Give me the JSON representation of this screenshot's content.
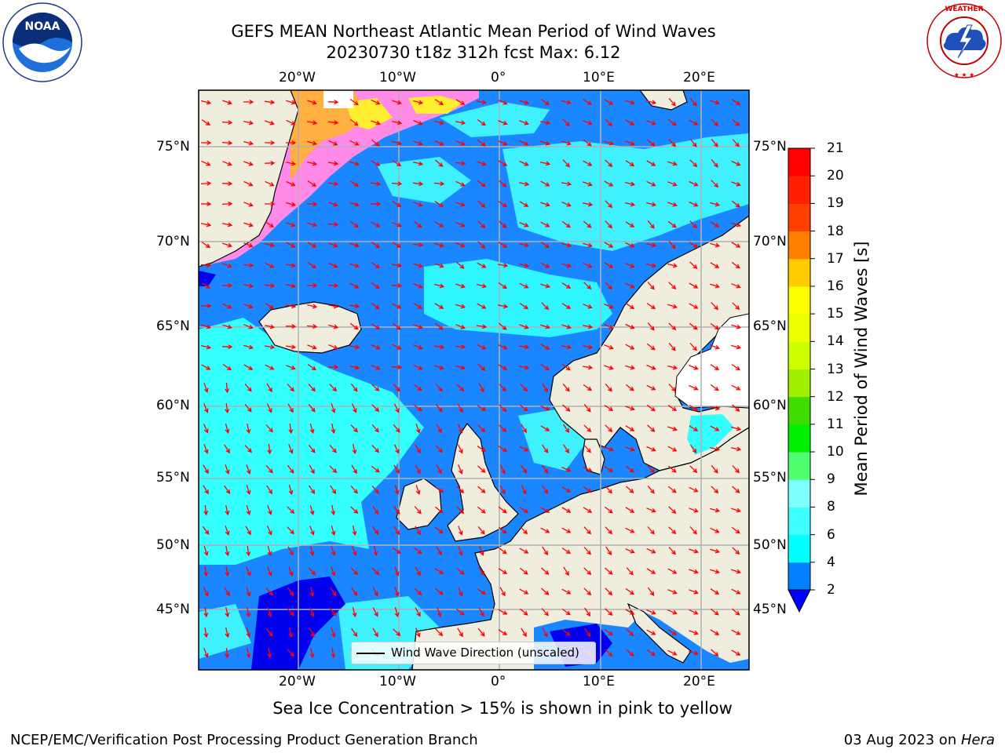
{
  "title": {
    "line1": "GEFS MEAN Northeast Atlantic Mean Period of Wind Waves",
    "line2": "20230730 t18z 312h fcst   Max: 6.12"
  },
  "logos": {
    "left": {
      "text": "NOAA",
      "ring_text": "NATIONAL OCEANIC AND ATMOSPHERIC ADMINISTRATION · U.S. DEPARTMENT OF COMMERCE",
      "icon": "noaa-logo"
    },
    "right": {
      "ring_text": "NATIONAL WEATHER SERVICE",
      "icon": "nws-logo"
    }
  },
  "map": {
    "longitude_labels": [
      "20°W",
      "10°W",
      "0°",
      "10°E",
      "20°E"
    ],
    "latitude_labels": [
      "75°N",
      "70°N",
      "65°N",
      "60°N",
      "55°N",
      "50°N",
      "45°N"
    ],
    "land_color": "#efedde",
    "coast_color": "#000000",
    "grid_color": "#b0b0b0",
    "arrow_color": "#ff0000"
  },
  "legend": {
    "label": "Wind Wave Direction (unscaled)"
  },
  "colorbar": {
    "label": "Mean Period of Wind Waves [s]",
    "ticks": [
      "2",
      "4",
      "6",
      "8",
      "9",
      "10",
      "11",
      "12",
      "13",
      "14",
      "15",
      "16",
      "17",
      "18",
      "19",
      "20",
      "21"
    ],
    "colors": [
      "#0080ff",
      "#00ffff",
      "#40ffff",
      "#80ffff",
      "#b0ffff",
      "#50ff70",
      "#00ee00",
      "#40dd00",
      "#a0ee00",
      "#ccff00",
      "#eeff00",
      "#ffff00",
      "#ffcc00",
      "#ffaa00",
      "#ff8000",
      "#ff4000",
      "#ff2000",
      "#ff0000"
    ],
    "under_color": "#0000ff"
  },
  "note": "Sea Ice Concentration > 15% is shown in pink to yellow",
  "footer": {
    "left": "NCEP/EMC/Verification Post Processing Product Generation Branch",
    "right_date": "03 Aug 2023 on ",
    "right_host": "Hera"
  }
}
